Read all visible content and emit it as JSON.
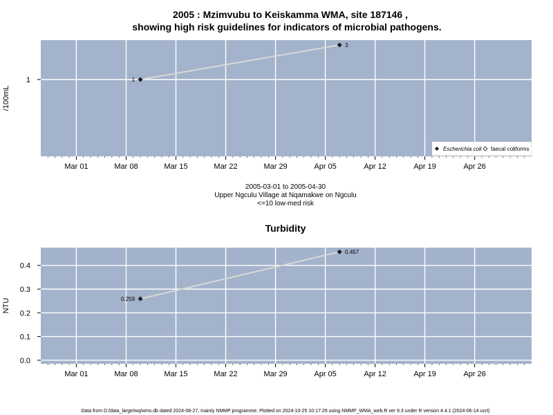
{
  "chart_data": [
    {
      "type": "line",
      "title_line1": "2005 : Mzimvubu to Keiskamma WMA, site 187146 ,",
      "title_line2": "showing high risk guidelines for indicators of microbial pathogens.",
      "ylabel": "/100mL",
      "ytick_labels": [
        "1"
      ],
      "yscale": "log",
      "xtick_labels": [
        "Mar 01",
        "Mar 08",
        "Mar 15",
        "Mar 22",
        "Mar 29",
        "Apr 05",
        "Apr 12",
        "Apr 19",
        "Apr 26"
      ],
      "xtick_dates": [
        "2005-03-01",
        "2005-03-08",
        "2005-03-15",
        "2005-03-22",
        "2005-03-29",
        "2005-04-05",
        "2005-04-12",
        "2005-04-19",
        "2005-04-26"
      ],
      "grid": true,
      "legend_position": "bottom-right",
      "legend": [
        {
          "name": "Escherichia coli",
          "marker": "filled-diamond"
        },
        {
          "name": "faecal coliforms",
          "marker": "open-diamond"
        }
      ],
      "series": [
        {
          "name": "Escherichia coli",
          "points": [
            {
              "date": "2005-03-10",
              "value": 1,
              "label": "1"
            },
            {
              "date": "2005-04-07",
              "value": 3,
              "label": "3"
            }
          ]
        }
      ],
      "subtitle_lines": [
        "2005-03-01 to 2005-04-30",
        "Upper Ngculu Village at Nqamakwe on Ngculu",
        "<=10 low-med risk"
      ]
    },
    {
      "type": "line",
      "title": "Turbidity",
      "ylabel": "NTU",
      "ytick_labels": [
        "0.0",
        "0.1",
        "0.2",
        "0.3",
        "0.4"
      ],
      "ytick_values": [
        0.0,
        0.1,
        0.2,
        0.3,
        0.4
      ],
      "ylim": [
        -0.015,
        0.475
      ],
      "xtick_labels": [
        "Mar 01",
        "Mar 08",
        "Mar 15",
        "Mar 22",
        "Mar 29",
        "Apr 05",
        "Apr 12",
        "Apr 19",
        "Apr 26"
      ],
      "xtick_dates": [
        "2005-03-01",
        "2005-03-08",
        "2005-03-15",
        "2005-03-22",
        "2005-03-29",
        "2005-04-05",
        "2005-04-12",
        "2005-04-19",
        "2005-04-26"
      ],
      "grid": true,
      "series": [
        {
          "points": [
            {
              "date": "2005-03-10",
              "value": 0.259,
              "label": "0.259"
            },
            {
              "date": "2005-04-07",
              "value": 0.457,
              "label": "0.457"
            }
          ]
        }
      ]
    }
  ],
  "footer": "Data from D:/data_large/wq/wms.db dated 2024-08-27, mainly NMMP programme. Plotted on 2024-10-25 10:17:29 using NMMP_WMA_web.R ver 9.3 under R version 4.4.1 (2024-06-14 ucrt)",
  "colors": {
    "panel_bg": "#a3b3cb",
    "grid": "#ffffff",
    "line": "#d9d9d9",
    "marker": "#1a1a1a"
  }
}
